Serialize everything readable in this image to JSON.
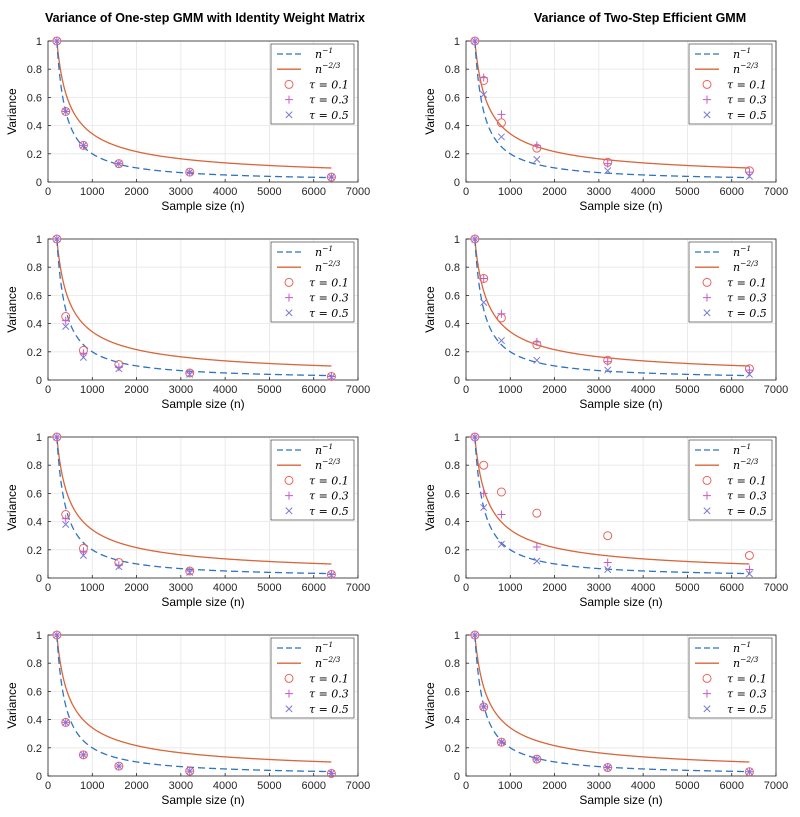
{
  "figure": {
    "left_title": "Variance of One-step GMM with Identity Weight Matrix",
    "right_title": "Variance of Two-Step Efficient GMM"
  },
  "colors": {
    "n_inv": "#2f74c0",
    "n_23": "#d9663a",
    "tau01": "#e8645e",
    "tau03": "#c85ac8",
    "tau05": "#7a7ad6",
    "axis": "#262626",
    "grid": "#e6e6e6"
  },
  "chart_data": [
    {
      "panel": "row1-left",
      "type": "line",
      "xlabel": "Sample size (n)",
      "ylabel": "Variance",
      "xlim": [
        0,
        7000
      ],
      "ylim": [
        0,
        1
      ],
      "xticks": [
        0,
        1000,
        2000,
        3000,
        4000,
        5000,
        6000,
        7000
      ],
      "yticks": [
        0,
        0.2,
        0.4,
        0.6,
        0.8,
        1
      ],
      "grid": true,
      "legend": "top-right",
      "x": [
        200,
        400,
        800,
        1600,
        3200,
        6400
      ],
      "series": [
        {
          "name": "n^{-1}",
          "style": "dashed",
          "curve": "n_inv"
        },
        {
          "name": "n^{-2/3}",
          "style": "solid",
          "curve": "n_23"
        },
        {
          "name": "τ = 0.1",
          "marker": "o",
          "values": [
            1.0,
            0.5,
            0.26,
            0.13,
            0.07,
            0.035
          ]
        },
        {
          "name": "τ = 0.3",
          "marker": "+",
          "values": [
            1.0,
            0.5,
            0.26,
            0.13,
            0.07,
            0.035
          ]
        },
        {
          "name": "τ = 0.5",
          "marker": "x",
          "values": [
            1.0,
            0.5,
            0.26,
            0.13,
            0.07,
            0.035
          ]
        }
      ]
    },
    {
      "panel": "row1-right",
      "type": "line",
      "xlabel": "Sample size (n)",
      "ylabel": "Variance",
      "xlim": [
        0,
        7000
      ],
      "ylim": [
        0,
        1
      ],
      "xticks": [
        0,
        1000,
        2000,
        3000,
        4000,
        5000,
        6000,
        7000
      ],
      "yticks": [
        0,
        0.2,
        0.4,
        0.6,
        0.8,
        1
      ],
      "grid": true,
      "legend": "top-right",
      "x": [
        200,
        400,
        800,
        1600,
        3200,
        6400
      ],
      "series": [
        {
          "name": "n^{-1}",
          "style": "dashed",
          "curve": "n_inv"
        },
        {
          "name": "n^{-2/3}",
          "style": "solid",
          "curve": "n_23"
        },
        {
          "name": "τ = 0.1",
          "marker": "o",
          "values": [
            1.0,
            0.72,
            0.42,
            0.24,
            0.14,
            0.08
          ]
        },
        {
          "name": "τ = 0.3",
          "marker": "+",
          "values": [
            1.0,
            0.74,
            0.48,
            0.26,
            0.13,
            0.07
          ]
        },
        {
          "name": "τ = 0.5",
          "marker": "x",
          "values": [
            1.0,
            0.62,
            0.32,
            0.16,
            0.08,
            0.04
          ]
        }
      ]
    },
    {
      "panel": "row2-left",
      "type": "line",
      "xlabel": "Sample size (n)",
      "ylabel": "Variance",
      "xlim": [
        0,
        7000
      ],
      "ylim": [
        0,
        1
      ],
      "xticks": [
        0,
        1000,
        2000,
        3000,
        4000,
        5000,
        6000,
        7000
      ],
      "yticks": [
        0,
        0.2,
        0.4,
        0.6,
        0.8,
        1
      ],
      "grid": true,
      "legend": "top-right",
      "x": [
        200,
        400,
        800,
        1600,
        3200,
        6400
      ],
      "series": [
        {
          "name": "n^{-1}",
          "style": "dashed",
          "curve": "n_inv"
        },
        {
          "name": "n^{-2/3}",
          "style": "solid",
          "curve": "n_23"
        },
        {
          "name": "τ = 0.1",
          "marker": "o",
          "values": [
            1.0,
            0.45,
            0.21,
            0.11,
            0.05,
            0.025
          ]
        },
        {
          "name": "τ = 0.3",
          "marker": "+",
          "values": [
            1.0,
            0.42,
            0.19,
            0.09,
            0.05,
            0.025
          ]
        },
        {
          "name": "τ = 0.5",
          "marker": "x",
          "values": [
            1.0,
            0.38,
            0.16,
            0.08,
            0.04,
            0.02
          ]
        }
      ]
    },
    {
      "panel": "row2-right",
      "type": "line",
      "xlabel": "Sample size (n)",
      "ylabel": "Variance",
      "xlim": [
        0,
        7000
      ],
      "ylim": [
        0,
        1
      ],
      "xticks": [
        0,
        1000,
        2000,
        3000,
        4000,
        5000,
        6000,
        7000
      ],
      "yticks": [
        0,
        0.2,
        0.4,
        0.6,
        0.8,
        1
      ],
      "grid": true,
      "legend": "top-right",
      "x": [
        200,
        400,
        800,
        1600,
        3200,
        6400
      ],
      "series": [
        {
          "name": "n^{-1}",
          "style": "dashed",
          "curve": "n_inv"
        },
        {
          "name": "n^{-2/3}",
          "style": "solid",
          "curve": "n_23"
        },
        {
          "name": "τ = 0.1",
          "marker": "o",
          "values": [
            1.0,
            0.72,
            0.44,
            0.25,
            0.14,
            0.08
          ]
        },
        {
          "name": "τ = 0.3",
          "marker": "+",
          "values": [
            1.0,
            0.72,
            0.47,
            0.27,
            0.13,
            0.07
          ]
        },
        {
          "name": "τ = 0.5",
          "marker": "x",
          "values": [
            1.0,
            0.55,
            0.28,
            0.14,
            0.07,
            0.04
          ]
        }
      ]
    },
    {
      "panel": "row3-left",
      "type": "line",
      "xlabel": "Sample size (n)",
      "ylabel": "Variance",
      "xlim": [
        0,
        7000
      ],
      "ylim": [
        0,
        1
      ],
      "xticks": [
        0,
        1000,
        2000,
        3000,
        4000,
        5000,
        6000,
        7000
      ],
      "yticks": [
        0,
        0.2,
        0.4,
        0.6,
        0.8,
        1
      ],
      "grid": true,
      "legend": "top-right",
      "x": [
        200,
        400,
        800,
        1600,
        3200,
        6400
      ],
      "series": [
        {
          "name": "n^{-1}",
          "style": "dashed",
          "curve": "n_inv"
        },
        {
          "name": "n^{-2/3}",
          "style": "solid",
          "curve": "n_23"
        },
        {
          "name": "τ = 0.1",
          "marker": "o",
          "values": [
            1.0,
            0.45,
            0.21,
            0.11,
            0.05,
            0.025
          ]
        },
        {
          "name": "τ = 0.3",
          "marker": "+",
          "values": [
            1.0,
            0.42,
            0.19,
            0.09,
            0.05,
            0.025
          ]
        },
        {
          "name": "τ = 0.5",
          "marker": "x",
          "values": [
            1.0,
            0.38,
            0.16,
            0.08,
            0.04,
            0.02
          ]
        }
      ]
    },
    {
      "panel": "row3-right",
      "type": "line",
      "xlabel": "Sample size (n)",
      "ylabel": "Variance",
      "xlim": [
        0,
        7000
      ],
      "ylim": [
        0,
        1
      ],
      "xticks": [
        0,
        1000,
        2000,
        3000,
        4000,
        5000,
        6000,
        7000
      ],
      "yticks": [
        0,
        0.2,
        0.4,
        0.6,
        0.8,
        1
      ],
      "grid": true,
      "legend": "top-right",
      "x": [
        200,
        400,
        800,
        1600,
        3200,
        6400
      ],
      "series": [
        {
          "name": "n^{-1}",
          "style": "dashed",
          "curve": "n_inv"
        },
        {
          "name": "n^{-2/3}",
          "style": "solid",
          "curve": "n_23"
        },
        {
          "name": "τ = 0.1",
          "marker": "o",
          "values": [
            1.0,
            0.8,
            0.61,
            0.46,
            0.3,
            0.16
          ]
        },
        {
          "name": "τ = 0.3",
          "marker": "+",
          "values": [
            1.0,
            0.6,
            0.45,
            0.22,
            0.11,
            0.06
          ]
        },
        {
          "name": "τ = 0.5",
          "marker": "x",
          "values": [
            1.0,
            0.5,
            0.24,
            0.12,
            0.06,
            0.03
          ]
        }
      ]
    },
    {
      "panel": "row4-left",
      "type": "line",
      "xlabel": "Sample size (n)",
      "ylabel": "Variance",
      "xlim": [
        0,
        7000
      ],
      "ylim": [
        0,
        1
      ],
      "xticks": [
        0,
        1000,
        2000,
        3000,
        4000,
        5000,
        6000,
        7000
      ],
      "yticks": [
        0,
        0.2,
        0.4,
        0.6,
        0.8,
        1
      ],
      "grid": true,
      "legend": "top-right",
      "x": [
        200,
        400,
        800,
        1600,
        3200,
        6400
      ],
      "series": [
        {
          "name": "n^{-1}",
          "style": "dashed",
          "curve": "n_inv"
        },
        {
          "name": "n^{-2/3}",
          "style": "solid",
          "curve": "n_23"
        },
        {
          "name": "τ = 0.1",
          "marker": "o",
          "values": [
            1.0,
            0.38,
            0.15,
            0.07,
            0.035,
            0.018
          ]
        },
        {
          "name": "τ = 0.3",
          "marker": "+",
          "values": [
            1.0,
            0.38,
            0.15,
            0.07,
            0.035,
            0.018
          ]
        },
        {
          "name": "τ = 0.5",
          "marker": "x",
          "values": [
            1.0,
            0.38,
            0.15,
            0.07,
            0.035,
            0.018
          ]
        }
      ]
    },
    {
      "panel": "row4-right",
      "type": "line",
      "xlabel": "Sample size (n)",
      "ylabel": "Variance",
      "xlim": [
        0,
        7000
      ],
      "ylim": [
        0,
        1
      ],
      "xticks": [
        0,
        1000,
        2000,
        3000,
        4000,
        5000,
        6000,
        7000
      ],
      "yticks": [
        0,
        0.2,
        0.4,
        0.6,
        0.8,
        1
      ],
      "grid": true,
      "legend": "top-right",
      "x": [
        200,
        400,
        800,
        1600,
        3200,
        6400
      ],
      "series": [
        {
          "name": "n^{-1}",
          "style": "dashed",
          "curve": "n_inv"
        },
        {
          "name": "n^{-2/3}",
          "style": "solid",
          "curve": "n_23"
        },
        {
          "name": "τ = 0.1",
          "marker": "o",
          "values": [
            1.0,
            0.49,
            0.24,
            0.12,
            0.06,
            0.03
          ]
        },
        {
          "name": "τ = 0.3",
          "marker": "+",
          "values": [
            1.0,
            0.49,
            0.24,
            0.12,
            0.06,
            0.03
          ]
        },
        {
          "name": "τ = 0.5",
          "marker": "x",
          "values": [
            1.0,
            0.49,
            0.24,
            0.12,
            0.06,
            0.03
          ]
        }
      ]
    }
  ]
}
